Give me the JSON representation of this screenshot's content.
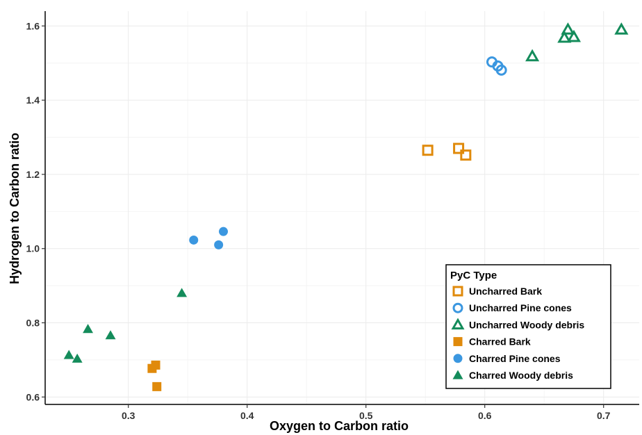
{
  "chart_data": {
    "type": "scatter",
    "xlabel": "Oxygen to Carbon ratio",
    "ylabel": "Hydrogen to Carbon ratio",
    "xlim": [
      0.23,
      0.73
    ],
    "ylim": [
      0.58,
      1.64
    ],
    "x_ticks": [
      0.3,
      0.4,
      0.5,
      0.6,
      0.7
    ],
    "y_ticks": [
      0.6,
      0.8,
      1.0,
      1.2,
      1.4,
      1.6
    ],
    "x_tick_labels": [
      "0.3",
      "0.4",
      "0.5",
      "0.6",
      "0.7"
    ],
    "y_tick_labels": [
      "0.6",
      "0.8",
      "1.0",
      "1.2",
      "1.4",
      "1.6"
    ],
    "grid": true,
    "legend_title": "PyC Type",
    "legend_position": "bottom-right",
    "series": [
      {
        "name": "Uncharred Bark",
        "marker": "square-open",
        "color": "#E08A0B",
        "points": [
          [
            0.552,
            1.265
          ],
          [
            0.578,
            1.27
          ],
          [
            0.584,
            1.252
          ]
        ]
      },
      {
        "name": "Uncharred Pine cones",
        "marker": "circle-open",
        "color": "#3B97E0",
        "points": [
          [
            0.606,
            1.503
          ],
          [
            0.611,
            1.492
          ],
          [
            0.614,
            1.481
          ]
        ]
      },
      {
        "name": "Uncharred Woody debris",
        "marker": "triangle-open",
        "color": "#148C5B",
        "points": [
          [
            0.64,
            1.518
          ],
          [
            0.667,
            1.568
          ],
          [
            0.67,
            1.59
          ],
          [
            0.675,
            1.57
          ],
          [
            0.715,
            1.59
          ]
        ]
      },
      {
        "name": "Charred Bark",
        "marker": "square",
        "color": "#E08A0B",
        "points": [
          [
            0.32,
            0.677
          ],
          [
            0.323,
            0.686
          ],
          [
            0.324,
            0.628
          ]
        ]
      },
      {
        "name": "Charred Pine cones",
        "marker": "circle",
        "color": "#3B97E0",
        "points": [
          [
            0.355,
            1.023
          ],
          [
            0.376,
            1.01
          ],
          [
            0.38,
            1.046
          ]
        ]
      },
      {
        "name": "Charred Woody debris",
        "marker": "triangle",
        "color": "#148C5B",
        "points": [
          [
            0.25,
            0.713
          ],
          [
            0.257,
            0.703
          ],
          [
            0.266,
            0.783
          ],
          [
            0.285,
            0.766
          ],
          [
            0.345,
            0.88
          ]
        ]
      }
    ]
  }
}
